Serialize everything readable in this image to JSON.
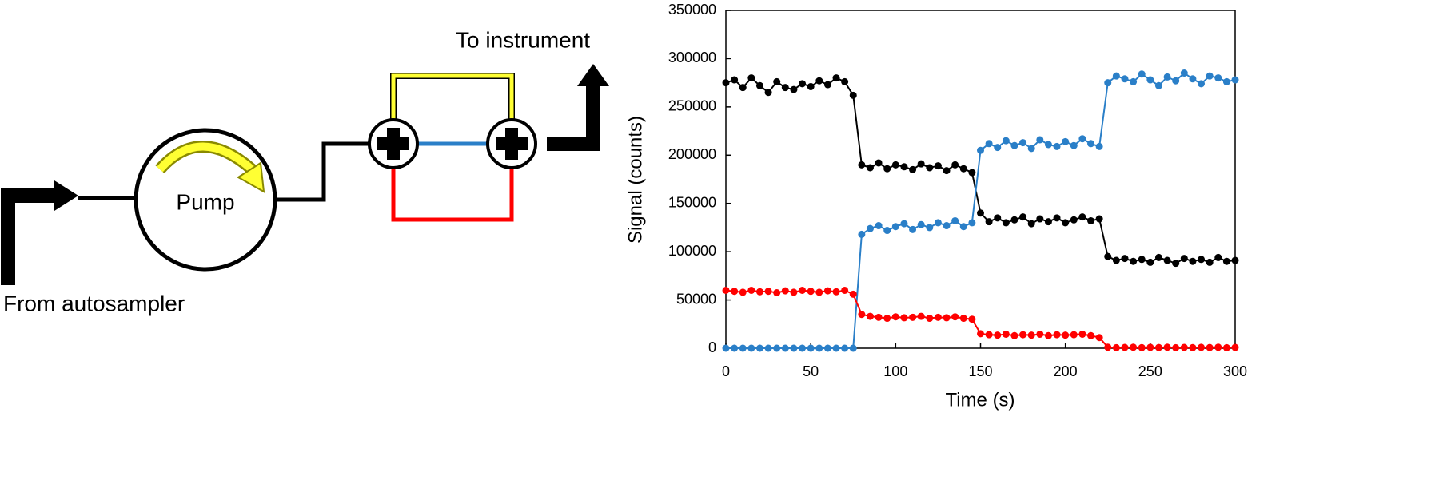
{
  "diagram": {
    "labels": {
      "to_instrument": "To instrument",
      "pump": "Pump",
      "from_autosampler": "From autosampler"
    }
  },
  "chart_data": {
    "type": "line",
    "x_label": "Time (s)",
    "y_label": "Signal (counts)",
    "xlim": [
      0,
      300
    ],
    "xticks": [
      0,
      50,
      100,
      150,
      200,
      250,
      300
    ],
    "ylim": [
      0,
      350000
    ],
    "yticks": [
      0,
      50000,
      100000,
      150000,
      200000,
      250000,
      300000,
      350000
    ],
    "x": [
      0,
      5,
      10,
      15,
      20,
      25,
      30,
      35,
      40,
      45,
      50,
      55,
      60,
      65,
      70,
      75,
      80,
      85,
      90,
      95,
      100,
      105,
      110,
      115,
      120,
      125,
      130,
      135,
      140,
      145,
      150,
      155,
      160,
      165,
      170,
      175,
      180,
      185,
      190,
      195,
      200,
      205,
      210,
      215,
      220,
      225,
      230,
      235,
      240,
      245,
      250,
      255,
      260,
      265,
      270,
      275,
      280,
      285,
      290,
      295,
      300
    ],
    "series": [
      {
        "color": "#000000",
        "values": [
          275000,
          278000,
          270000,
          280000,
          272000,
          265000,
          276000,
          270000,
          268000,
          274000,
          271000,
          277000,
          273000,
          280000,
          276000,
          262000,
          190000,
          187000,
          192000,
          186000,
          190000,
          188000,
          185000,
          191000,
          187000,
          189000,
          184000,
          190000,
          186000,
          182000,
          140000,
          131000,
          135000,
          130000,
          133000,
          136000,
          129000,
          134000,
          131000,
          135000,
          130000,
          133000,
          136000,
          132000,
          134000,
          95000,
          91000,
          93000,
          90000,
          92000,
          89000,
          94000,
          91000,
          88000,
          93000,
          90000,
          92000,
          89000,
          94000,
          90000,
          91000
        ]
      },
      {
        "color": "#2a7fc8",
        "values": [
          0,
          0,
          0,
          0,
          0,
          0,
          0,
          0,
          0,
          0,
          0,
          0,
          0,
          0,
          0,
          0,
          118000,
          124000,
          127000,
          122000,
          126000,
          129000,
          123000,
          128000,
          125000,
          130000,
          127000,
          132000,
          126000,
          130000,
          205000,
          212000,
          208000,
          215000,
          210000,
          213000,
          207000,
          216000,
          211000,
          209000,
          214000,
          210000,
          217000,
          212000,
          209000,
          275000,
          282000,
          279000,
          276000,
          284000,
          278000,
          272000,
          281000,
          277000,
          285000,
          279000,
          274000,
          282000,
          280000,
          276000,
          278000
        ]
      },
      {
        "color": "#ff0000",
        "values": [
          60000,
          59000,
          58000,
          60000,
          58500,
          59000,
          57500,
          59500,
          58000,
          60000,
          59000,
          58000,
          59500,
          58500,
          60000,
          56000,
          35000,
          33000,
          32000,
          31000,
          32500,
          31500,
          32000,
          33000,
          31000,
          32000,
          31500,
          32500,
          31000,
          30000,
          15000,
          14000,
          13500,
          14500,
          13000,
          14000,
          13500,
          14500,
          13000,
          14000,
          13500,
          14000,
          14500,
          13000,
          11000,
          1000,
          500,
          800,
          1000,
          600,
          900,
          700,
          1000,
          500,
          800,
          600,
          900,
          700,
          1000,
          500,
          800
        ]
      }
    ]
  }
}
